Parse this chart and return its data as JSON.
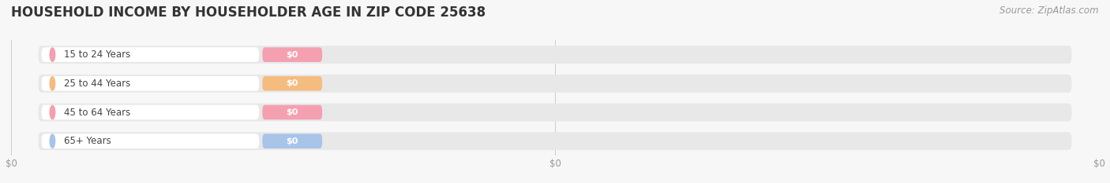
{
  "title": "HOUSEHOLD INCOME BY HOUSEHOLDER AGE IN ZIP CODE 25638",
  "source": "Source: ZipAtlas.com",
  "categories": [
    "15 to 24 Years",
    "25 to 44 Years",
    "45 to 64 Years",
    "65+ Years"
  ],
  "values": [
    0,
    0,
    0,
    0
  ],
  "bar_colors": [
    "#f4a0b0",
    "#f5bc80",
    "#f4a0b0",
    "#a8c4e8"
  ],
  "background_color": "#f7f7f7",
  "bar_bg_color": "#e8e8e8",
  "title_fontsize": 12,
  "source_fontsize": 8.5,
  "figsize": [
    14.06,
    2.33
  ],
  "dpi": 100
}
